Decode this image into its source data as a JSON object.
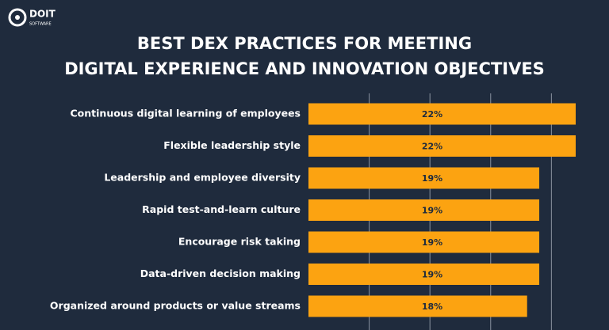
{
  "logo": {
    "name": "DOIT",
    "tagline": "SOFTWARE"
  },
  "chart_data": {
    "type": "hbar",
    "title": [
      "BEST DEX PRACTICES FOR MEETING",
      "DIGITAL EXPERIENCE AND INNOVATION OBJECTIVES"
    ],
    "categories": [
      "Continuous digital learning of employees",
      "Flexible leadership style",
      "Leadership and employee diversity",
      "Rapid test-and-learn culture",
      "Encourage risk taking",
      "Data-driven decision making",
      "Organized around products or value streams"
    ],
    "values": [
      22,
      22,
      19,
      19,
      19,
      19,
      18
    ],
    "value_labels": [
      "22%",
      "22%",
      "19%",
      "19%",
      "19%",
      "19%",
      "18%"
    ],
    "color": "#fca311",
    "xlim": [
      0,
      22
    ],
    "xticks": [
      5,
      10,
      15,
      20
    ],
    "grid": true
  }
}
